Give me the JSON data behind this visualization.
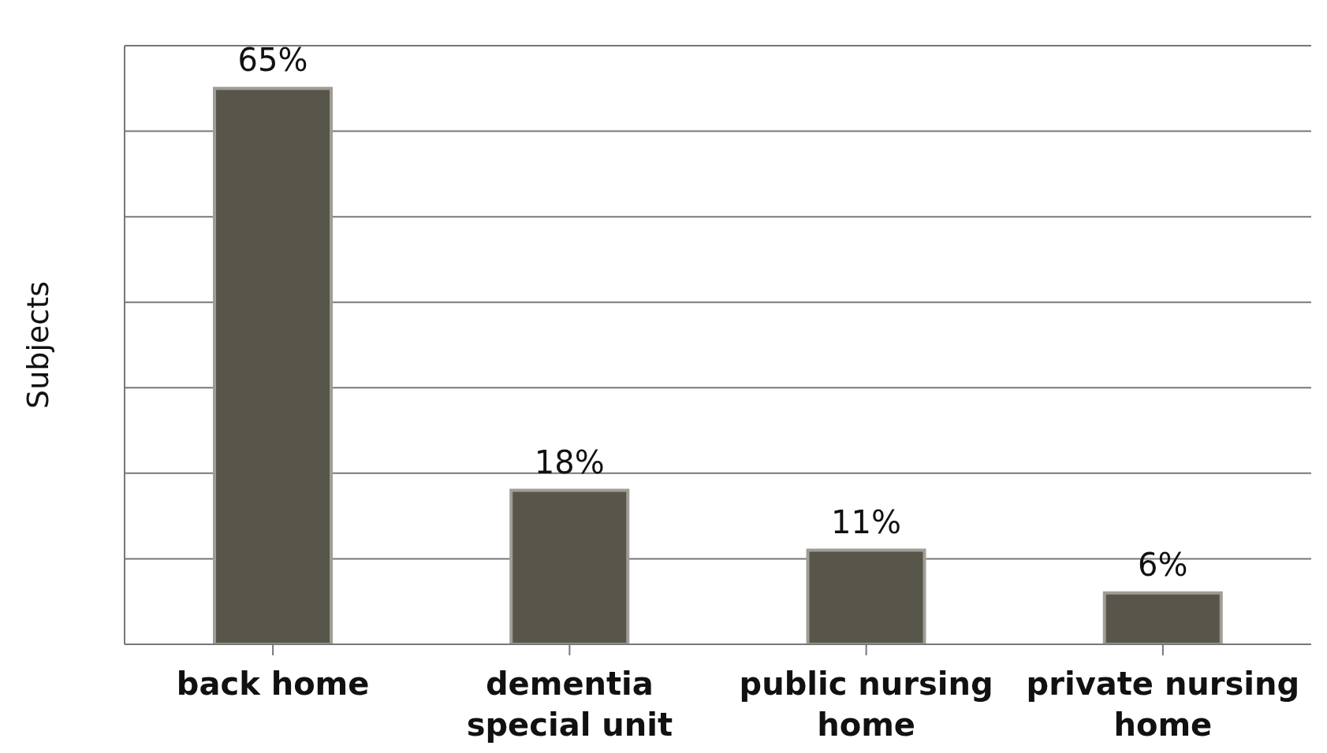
{
  "chart_data": {
    "type": "bar",
    "ylabel": "Subjects",
    "categories": [
      "back home",
      "dementia special unit",
      "public nursing home",
      "private nursing home"
    ],
    "values": [
      65,
      18,
      11,
      6
    ],
    "value_labels": [
      "65%",
      "18%",
      "11%",
      "6%"
    ],
    "color": "#58554b",
    "ylim": [
      0,
      70
    ],
    "yticks": [
      {
        "value": 0,
        "label": null
      },
      {
        "value": 10,
        "label": null
      },
      {
        "value": 20,
        "label": null
      },
      {
        "value": 30,
        "label": null
      },
      {
        "value": 40,
        "label": null
      },
      {
        "value": 50,
        "label": null
      },
      {
        "value": 60,
        "label": null
      },
      {
        "value": 70,
        "label": null
      }
    ],
    "tick_labels": "x",
    "grid": "y"
  }
}
